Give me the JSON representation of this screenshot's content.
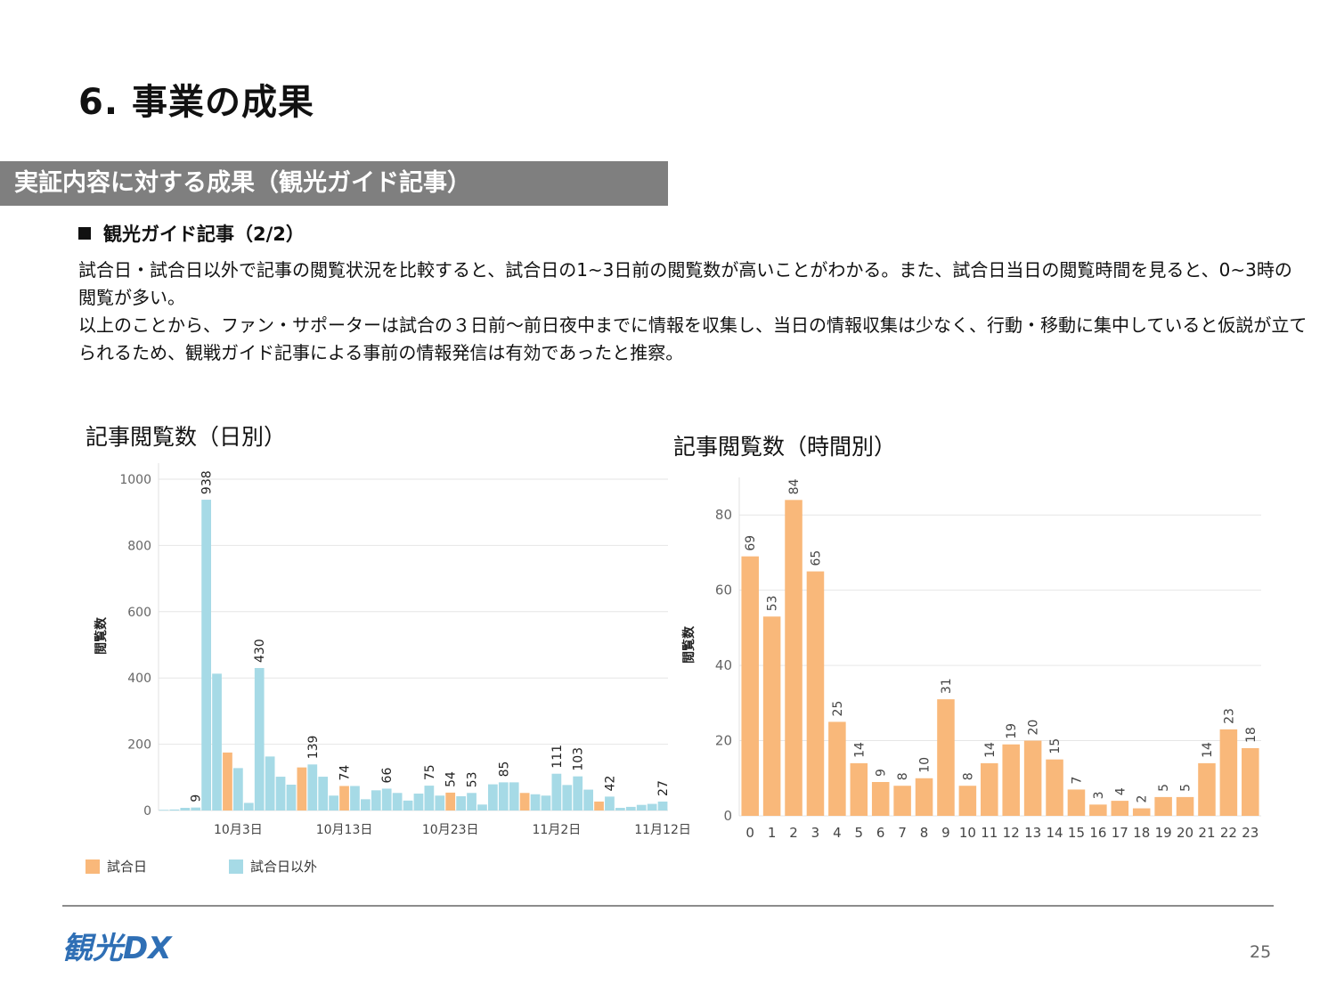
{
  "title": "6. 事業の成果",
  "section": "実証内容に対する成果（観光ガイド記事）",
  "subheading": "観光ガイド記事（2/2）",
  "body": [
    "試合日・試合日以外で記事の閲覧状況を比較すると、試合日の1~3日前の閲覧数が高いことがわかる。また、試合日当日の閲覧時間を見ると、0~3時の閲覧が多い。",
    "以上のことから、ファン・サポーターは試合の３日前～前日夜中までに情報を収集し、当日の情報収集は少なく、行動・移動に集中していると仮説が立てられるため、観戦ガイド記事による事前の情報発信は有効であったと推察。"
  ],
  "colors": {
    "match": "#f9b87a",
    "non_match": "#a6dae6",
    "band": "#7f7f7f",
    "logo_blue": "#2f6fb5",
    "logo_green": "#6cbd45"
  },
  "legend": {
    "match": "試合日",
    "non_match": "試合日以外"
  },
  "logo_text": "観光DX",
  "page_number": "25",
  "chart_data": [
    {
      "type": "bar",
      "title": "記事閲覧数（日別）",
      "ylabel": "閲覧数",
      "ylim": [
        0,
        1000
      ],
      "yticks": [
        0,
        200,
        400,
        600,
        800,
        1000
      ],
      "xtick_labels": [
        {
          "index": 7,
          "label": "10月3日"
        },
        {
          "index": 17,
          "label": "10月13日"
        },
        {
          "index": 27,
          "label": "10月23日"
        },
        {
          "index": 37,
          "label": "11月2日"
        },
        {
          "index": 47,
          "label": "11月12日"
        }
      ],
      "values": [
        2,
        3,
        8,
        9,
        938,
        413,
        175,
        128,
        23,
        430,
        163,
        102,
        78,
        130,
        139,
        102,
        45,
        74,
        74,
        34,
        61,
        66,
        53,
        30,
        51,
        75,
        45,
        54,
        43,
        53,
        18,
        79,
        85,
        85,
        53,
        49,
        45,
        111,
        77,
        103,
        63,
        27,
        42,
        8,
        11,
        17,
        20,
        27
      ],
      "is_match": [
        0,
        0,
        0,
        0,
        0,
        0,
        1,
        0,
        0,
        0,
        0,
        0,
        0,
        1,
        0,
        0,
        0,
        1,
        0,
        0,
        0,
        0,
        0,
        0,
        0,
        0,
        0,
        1,
        0,
        0,
        0,
        0,
        0,
        0,
        1,
        0,
        0,
        0,
        0,
        0,
        0,
        1,
        0,
        0,
        0,
        0,
        0,
        0
      ],
      "data_labels": [
        {
          "index": 3,
          "label": "9"
        },
        {
          "index": 4,
          "label": "938"
        },
        {
          "index": 9,
          "label": "430"
        },
        {
          "index": 14,
          "label": "139"
        },
        {
          "index": 17,
          "label": "74"
        },
        {
          "index": 21,
          "label": "66"
        },
        {
          "index": 25,
          "label": "75"
        },
        {
          "index": 27,
          "label": "54"
        },
        {
          "index": 29,
          "label": "53"
        },
        {
          "index": 32,
          "label": "85"
        },
        {
          "index": 37,
          "label": "111"
        },
        {
          "index": 39,
          "label": "103"
        },
        {
          "index": 42,
          "label": "42"
        },
        {
          "index": 47,
          "label": "27"
        }
      ]
    },
    {
      "type": "bar",
      "title": "記事閲覧数（時間別）",
      "ylabel": "閲覧数",
      "ylim": [
        0,
        90
      ],
      "yticks": [
        0,
        20,
        40,
        60,
        80
      ],
      "categories": [
        "0",
        "1",
        "2",
        "3",
        "4",
        "5",
        "6",
        "7",
        "8",
        "9",
        "10",
        "11",
        "12",
        "13",
        "14",
        "15",
        "16",
        "17",
        "18",
        "19",
        "20",
        "21",
        "22",
        "23"
      ],
      "values": [
        69,
        53,
        84,
        65,
        25,
        14,
        9,
        8,
        10,
        31,
        8,
        14,
        19,
        20,
        15,
        7,
        3,
        4,
        2,
        5,
        5,
        14,
        23,
        18
      ]
    }
  ]
}
